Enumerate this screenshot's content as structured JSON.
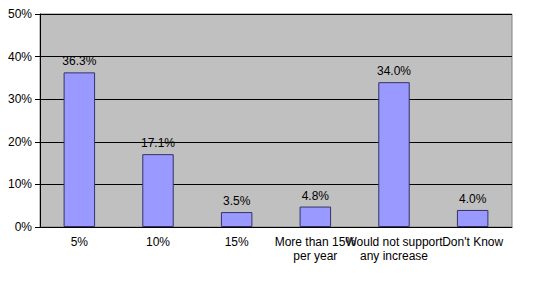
{
  "chart_data": {
    "type": "bar",
    "categories": [
      "5%",
      "10%",
      "15%",
      "More than 15%\nper year",
      "Would not support\nany increase",
      "Don't Know"
    ],
    "values": [
      36.3,
      17.1,
      3.5,
      4.8,
      34.0,
      4.0
    ],
    "value_labels": [
      "36.3%",
      "17.1%",
      "3.5%",
      "4.8%",
      "34.0%",
      "4.0%"
    ],
    "data_labels": true,
    "color": "#9999ff",
    "ylim": [
      0,
      50
    ],
    "yticks": [
      {
        "value": 0,
        "label": "0%"
      },
      {
        "value": 10,
        "label": "10%"
      },
      {
        "value": 20,
        "label": "20%"
      },
      {
        "value": 30,
        "label": "30%"
      },
      {
        "value": 40,
        "label": "40%"
      },
      {
        "value": 50,
        "label": "50%"
      }
    ],
    "grid": true
  }
}
